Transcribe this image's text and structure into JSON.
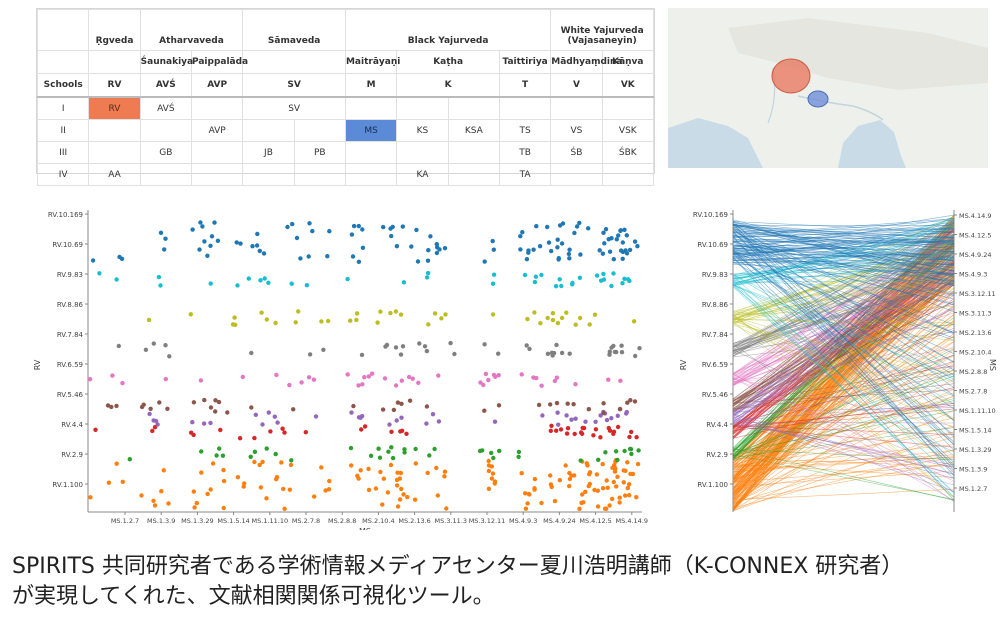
{
  "table": {
    "header1": [
      {
        "text": "",
        "span": 1
      },
      {
        "text": "Ṛgveda",
        "span": 1
      },
      {
        "text": "Atharvaveda",
        "span": 2
      },
      {
        "text": "Sāmaveda",
        "span": 2
      },
      {
        "text": "Black Yajurveda",
        "span": 4
      },
      {
        "text": "White Yajurveda\n(Vajasaneyin)",
        "span": 2
      }
    ],
    "header2": [
      "",
      "",
      "Śaunakiya",
      "Paippalāda",
      "",
      "",
      "Maitrāyaṇi",
      "Kaṭha",
      "",
      "Taittiriya",
      "Mādhyaṃdina",
      "Kāṇva"
    ],
    "header3": [
      "Schools",
      "RV",
      "AVŚ",
      "AVP",
      "SV",
      "",
      "M",
      "K",
      "",
      "T",
      "V",
      "VK"
    ],
    "rows": [
      [
        "I",
        "RV",
        "AVŚ",
        "",
        "SV",
        "",
        "",
        "",
        "",
        "",
        "",
        ""
      ],
      [
        "II",
        "",
        "",
        "AVP",
        "",
        "",
        "MS",
        "KS",
        "KSA",
        "TS",
        "VS",
        "VSK"
      ],
      [
        "III",
        "",
        "GB",
        "",
        "JB",
        "PB",
        "",
        "",
        "",
        "TB",
        "ŚB",
        "ŚBK"
      ],
      [
        "IV",
        "AA",
        "",
        "",
        "",
        "",
        "",
        "KA",
        "",
        "TA",
        "",
        ""
      ]
    ],
    "highlight_colors": {
      "RV": "#ef7b52",
      "MS": "#5b8bd6"
    }
  },
  "map": {
    "land_color": "#eef0ec",
    "water_color": "#c9dbe6",
    "circle_red_color": "#e8735a",
    "circle_blue_color": "#6f8fd8"
  },
  "scatter": {
    "y_axis_label": "RV",
    "x_axis_label": "MS",
    "y_ticks": [
      "RV.10.169",
      "RV.10.69",
      "RV.9.83",
      "RV.8.86",
      "RV.7.84",
      "RV.6.59",
      "RV.5.46",
      "RV.4.4",
      "RV.2.9",
      "RV.1.100"
    ],
    "x_ticks": [
      "MS.1.2.7",
      "MS.1.3.9",
      "MS.1.3.29",
      "MS.1.5.14",
      "MS.1.11.10",
      "MS.2.7.8",
      "MS.2.8.8",
      "MS.2.10.4",
      "MS.2.13.6",
      "MS.3.11.3",
      "MS.3.12.11",
      "MS.4.9.3",
      "MS.4.9.24",
      "MS.4.12.5",
      "MS.4.14.9"
    ],
    "band_colors": [
      "#ff7f0e",
      "#2ca02c",
      "#d62728",
      "#9467bd",
      "#8c564b",
      "#e377c2",
      "#7f7f7f",
      "#bcbd22",
      "#17becf",
      "#1f77b4"
    ]
  },
  "parallel": {
    "left_axis_label": "RV",
    "right_axis_label": "MS",
    "left_ticks": [
      "RV.10.169",
      "RV.10.69",
      "RV.9.83",
      "RV.8.86",
      "RV.7.84",
      "RV.6.59",
      "RV.5.46",
      "RV.4.4",
      "RV.2.9",
      "RV.1.100"
    ],
    "right_ticks": [
      "MS.4.14.9",
      "MS.4.12.5",
      "MS.4.9.24",
      "MS.4.9.3",
      "MS.3.12.11",
      "MS.3.11.3",
      "MS.2.13.6",
      "MS.2.10.4",
      "MS.2.8.8",
      "MS.2.7.8",
      "MS.1.11.10",
      "MS.1.5.14",
      "MS.1.3.29",
      "MS.1.3.9",
      "MS.1.2.7"
    ]
  },
  "caption": {
    "line1": "SPIRITS 共同研究者である学術情報メディアセンター夏川浩明講師（K-CONNEX 研究者）",
    "line2": "が実現してくれた、文献相関関係可視化ツール。"
  }
}
